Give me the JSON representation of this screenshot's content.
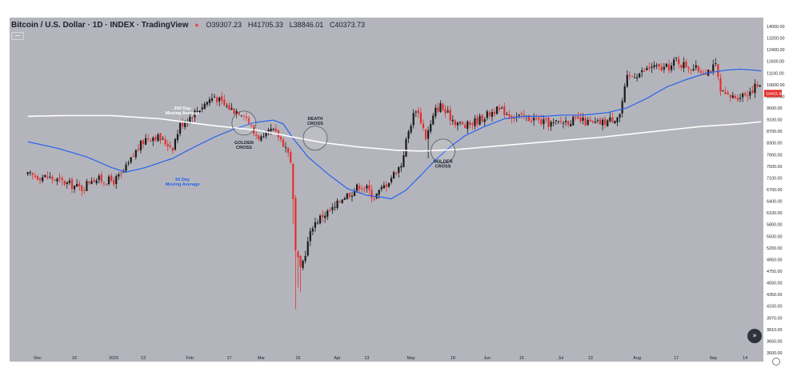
{
  "header": {
    "title": "Bitcoin / U.S. Dollar · 1D · INDEX · TradingView",
    "status_dot": "●",
    "open": "O39307.23",
    "high": "H41705.33",
    "low": "L38846.01",
    "close": "C40373.73"
  },
  "colors": {
    "background": "#b4b5bc",
    "up_candle": "#1a1a1a",
    "down_candle": "#e2302f",
    "ma50": "#2662f0",
    "ma200": "#ffffff",
    "price_tag": "#e2302f",
    "axis_text": "#1c1f2a"
  },
  "icons": {
    "collapse": "collapse-icon",
    "go_to_realtime": "chevron-double-right-icon",
    "settings": "gear-icon"
  },
  "go_to_realtime_glyph": "»",
  "chart_data": {
    "type": "candlestick",
    "yscale": "log",
    "ylim": [
      3500,
      14000
    ],
    "y_ticks": [
      "14000.00",
      "13200.00",
      "12400.00",
      "11600.00",
      "11100.00",
      "10600.00",
      "10100.00",
      "9500.00",
      "9100.00",
      "8700.00",
      "8300.00",
      "7900.00",
      "7500.00",
      "7100.00",
      "6700.00",
      "6400.00",
      "6100.00",
      "5800.00",
      "5500.00",
      "5200.00",
      "4950.00",
      "4750.00",
      "4550.00",
      "4350.00",
      "4150.00",
      "3970.00",
      "3810.00",
      "3650.00",
      "3500.00"
    ],
    "x_ticks": [
      {
        "label": "Dec",
        "day": 0
      },
      {
        "label": "16",
        "day": 15
      },
      {
        "label": "2020",
        "day": 31
      },
      {
        "label": "13",
        "day": 43
      },
      {
        "label": "Feb",
        "day": 62
      },
      {
        "label": "17",
        "day": 78
      },
      {
        "label": "Mar",
        "day": 91
      },
      {
        "label": "16",
        "day": 106
      },
      {
        "label": "Apr",
        "day": 122
      },
      {
        "label": "13",
        "day": 134
      },
      {
        "label": "May",
        "day": 152
      },
      {
        "label": "18",
        "day": 169
      },
      {
        "label": "Jun",
        "day": 183
      },
      {
        "label": "15",
        "day": 197
      },
      {
        "label": "Jul",
        "day": 213
      },
      {
        "label": "13",
        "day": 225
      },
      {
        "label": "Aug",
        "day": 244
      },
      {
        "label": "17",
        "day": 260
      },
      {
        "label": "Sep",
        "day": 275
      },
      {
        "label": "14",
        "day": 288
      }
    ],
    "price_tag": "10415.95",
    "close_anchors": [
      [
        -4,
        7350
      ],
      [
        4,
        7300
      ],
      [
        10,
        7150
      ],
      [
        14,
        7050
      ],
      [
        18,
        6950
      ],
      [
        22,
        7250
      ],
      [
        27,
        7200
      ],
      [
        31,
        7180
      ],
      [
        34,
        7350
      ],
      [
        37,
        7700
      ],
      [
        40,
        8150
      ],
      [
        44,
        8600
      ],
      [
        48,
        8700
      ],
      [
        52,
        8450
      ],
      [
        55,
        8300
      ],
      [
        58,
        9100
      ],
      [
        61,
        9350
      ],
      [
        65,
        9700
      ],
      [
        70,
        10150
      ],
      [
        72,
        10300
      ],
      [
        76,
        9900
      ],
      [
        80,
        9700
      ],
      [
        84,
        9600
      ],
      [
        88,
        8800
      ],
      [
        92,
        8550
      ],
      [
        95,
        8900
      ],
      [
        98,
        8700
      ],
      [
        101,
        8300
      ],
      [
        103,
        7850
      ],
      [
        105,
        5300
      ],
      [
        107,
        4900
      ],
      [
        109,
        5300
      ],
      [
        112,
        5950
      ],
      [
        116,
        6200
      ],
      [
        121,
        6400
      ],
      [
        124,
        6700
      ],
      [
        128,
        6850
      ],
      [
        131,
        7050
      ],
      [
        134,
        6950
      ],
      [
        137,
        6700
      ],
      [
        139,
        6850
      ],
      [
        142,
        7100
      ],
      [
        145,
        7400
      ],
      [
        148,
        7700
      ],
      [
        150,
        8500
      ],
      [
        152,
        9200
      ],
      [
        154,
        9800
      ],
      [
        156,
        9300
      ],
      [
        158,
        8650
      ],
      [
        160,
        9100
      ],
      [
        162,
        9700
      ],
      [
        164,
        9900
      ],
      [
        166,
        9600
      ],
      [
        170,
        9250
      ],
      [
        174,
        9050
      ],
      [
        178,
        9250
      ],
      [
        182,
        9450
      ],
      [
        186,
        9700
      ],
      [
        190,
        9650
      ],
      [
        194,
        9450
      ],
      [
        198,
        9400
      ],
      [
        202,
        9350
      ],
      [
        206,
        9200
      ],
      [
        210,
        9150
      ],
      [
        214,
        9250
      ],
      [
        218,
        9300
      ],
      [
        222,
        9250
      ],
      [
        226,
        9150
      ],
      [
        230,
        9200
      ],
      [
        234,
        9350
      ],
      [
        237,
        9550
      ],
      [
        240,
        11100
      ],
      [
        243,
        11300
      ],
      [
        246,
        11400
      ],
      [
        250,
        11700
      ],
      [
        254,
        11550
      ],
      [
        258,
        11700
      ],
      [
        260,
        12050
      ],
      [
        262,
        11800
      ],
      [
        265,
        11700
      ],
      [
        268,
        11550
      ],
      [
        271,
        11450
      ],
      [
        274,
        11550
      ],
      [
        276,
        11700
      ],
      [
        278,
        10450
      ],
      [
        281,
        10250
      ],
      [
        285,
        10300
      ],
      [
        289,
        10450
      ],
      [
        293,
        10800
      ],
      [
        296,
        10415
      ]
    ],
    "series": [
      {
        "name": "50 Day Moving Average",
        "anchors": [
          [
            -4,
            8480
          ],
          [
            8,
            8250
          ],
          [
            20,
            7950
          ],
          [
            30,
            7600
          ],
          [
            36,
            7450
          ],
          [
            44,
            7600
          ],
          [
            55,
            7900
          ],
          [
            64,
            8300
          ],
          [
            72,
            8650
          ],
          [
            80,
            8950
          ],
          [
            88,
            9200
          ],
          [
            96,
            9300
          ],
          [
            100,
            9150
          ],
          [
            104,
            8600
          ],
          [
            110,
            7950
          ],
          [
            118,
            7400
          ],
          [
            126,
            6950
          ],
          [
            134,
            6750
          ],
          [
            140,
            6700
          ],
          [
            144,
            6650
          ],
          [
            150,
            6900
          ],
          [
            156,
            7350
          ],
          [
            162,
            7850
          ],
          [
            168,
            8300
          ],
          [
            174,
            8700
          ],
          [
            182,
            9050
          ],
          [
            190,
            9350
          ],
          [
            198,
            9450
          ],
          [
            206,
            9450
          ],
          [
            214,
            9500
          ],
          [
            222,
            9500
          ],
          [
            232,
            9600
          ],
          [
            240,
            9800
          ],
          [
            248,
            10200
          ],
          [
            256,
            10700
          ],
          [
            264,
            11050
          ],
          [
            272,
            11350
          ],
          [
            280,
            11500
          ],
          [
            286,
            11550
          ],
          [
            292,
            11500
          ],
          [
            296,
            11450
          ]
        ]
      },
      {
        "name": "200 Day Moving Average",
        "anchors": [
          [
            -4,
            9450
          ],
          [
            10,
            9480
          ],
          [
            30,
            9480
          ],
          [
            50,
            9350
          ],
          [
            70,
            9100
          ],
          [
            90,
            8900
          ],
          [
            104,
            8650
          ],
          [
            116,
            8450
          ],
          [
            130,
            8300
          ],
          [
            146,
            8180
          ],
          [
            156,
            8150
          ],
          [
            170,
            8200
          ],
          [
            190,
            8350
          ],
          [
            210,
            8500
          ],
          [
            230,
            8650
          ],
          [
            250,
            8850
          ],
          [
            270,
            9050
          ],
          [
            286,
            9150
          ],
          [
            296,
            9250
          ]
        ]
      }
    ],
    "annotations": [
      {
        "text": [
          "200 Day",
          "Moving Average"
        ],
        "color": "#ffffff",
        "day": 59,
        "price": 9720
      },
      {
        "text": [
          "50 Day",
          "Moving Average"
        ],
        "color": "#2662f0",
        "day": 59,
        "price": 7180
      },
      {
        "text": [
          "GOLDEN",
          "CROSS"
        ],
        "color": "#1c1f2a",
        "day": 84,
        "price": 8400
      },
      {
        "text": [
          "DEATH",
          "CROSS"
        ],
        "color": "#1c1f2a",
        "day": 113,
        "price": 9300
      },
      {
        "text": [
          "GOLDEN",
          "CROSS"
        ],
        "color": "#1c1f2a",
        "day": 165,
        "price": 7750
      }
    ],
    "crosses": [
      {
        "label": "golden-cross",
        "day": 84,
        "price": 9180
      },
      {
        "label": "death-cross",
        "day": 113,
        "price": 8610
      },
      {
        "label": "golden-cross",
        "day": 165,
        "price": 8150
      }
    ]
  }
}
